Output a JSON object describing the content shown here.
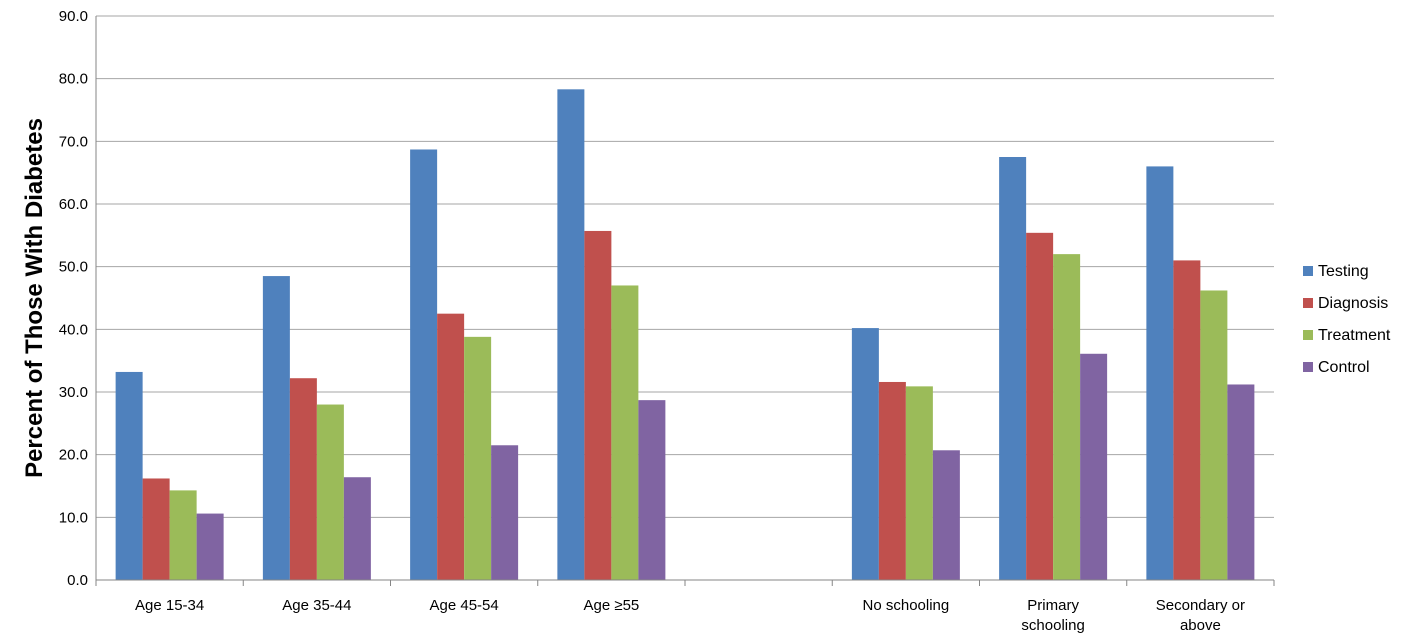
{
  "chart_data": {
    "type": "bar",
    "title": "",
    "xlabel": "",
    "ylabel": "Percent of Those With Diabetes",
    "ylim": [
      0,
      90
    ],
    "yticks": [
      "0.0",
      "10.0",
      "20.0",
      "30.0",
      "40.0",
      "50.0",
      "60.0",
      "70.0",
      "80.0",
      "90.0"
    ],
    "grid": true,
    "legend_position": "right",
    "categories": [
      [
        "Age 15-34"
      ],
      [
        "Age 35-44"
      ],
      [
        "Age 45-54"
      ],
      [
        "Age ≥55"
      ],
      [
        ""
      ],
      [
        "No schooling"
      ],
      [
        "Primary",
        "schooling"
      ],
      [
        "Secondary or",
        "above"
      ]
    ],
    "series": [
      {
        "name": "Testing",
        "color": "#4F81BD",
        "values": [
          33.2,
          48.5,
          68.7,
          78.3,
          null,
          40.2,
          67.5,
          66.0
        ]
      },
      {
        "name": "Diagnosis",
        "color": "#C0504D",
        "values": [
          16.2,
          32.2,
          42.5,
          55.7,
          null,
          31.6,
          55.4,
          51.0
        ]
      },
      {
        "name": "Treatment",
        "color": "#9BBB59",
        "values": [
          14.3,
          28.0,
          38.8,
          47.0,
          null,
          30.9,
          52.0,
          46.2
        ]
      },
      {
        "name": "Control",
        "color": "#8064A2",
        "values": [
          10.6,
          16.4,
          21.5,
          28.7,
          null,
          20.7,
          36.1,
          31.2
        ]
      }
    ]
  }
}
